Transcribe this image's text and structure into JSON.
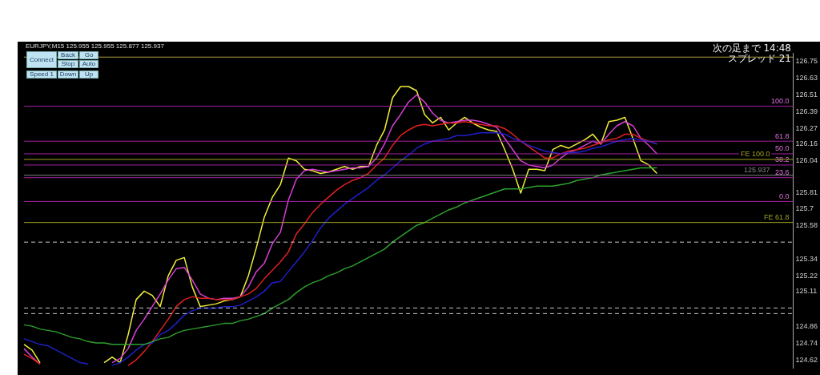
{
  "chart_data": {
    "type": "line",
    "title": "EURJPY,M15 125.955 125.955 125.877 125.937",
    "categories": [
      null,
      null,
      null,
      null,
      null,
      null,
      null,
      null,
      null,
      null,
      null,
      null,
      null,
      null,
      null,
      null,
      null,
      null,
      null,
      null,
      null,
      null,
      null,
      null,
      null,
      null,
      null,
      null,
      null,
      null,
      null,
      null,
      null,
      null,
      null,
      null,
      null,
      null,
      null,
      null,
      null,
      null,
      null,
      null,
      null,
      null,
      null,
      null,
      null,
      null,
      null,
      null,
      null,
      null,
      null,
      null,
      null,
      null,
      null,
      null,
      null,
      null,
      null,
      null,
      null,
      null,
      null,
      null,
      null,
      null,
      null,
      null,
      null,
      null,
      null,
      null,
      null,
      null,
      null,
      null,
      null,
      null,
      null,
      null,
      null,
      null,
      null,
      null,
      null,
      null,
      null,
      null,
      null,
      null,
      null,
      null,
      null
    ],
    "series": [
      {
        "color": "#2ca02c",
        "values": [
          124.87,
          124.86,
          124.84,
          124.83,
          124.82,
          124.8,
          124.78,
          124.77,
          124.75,
          124.74,
          124.74,
          124.73,
          124.73,
          124.73,
          124.73,
          124.73,
          124.75,
          124.77,
          124.78,
          124.81,
          124.83,
          124.84,
          124.85,
          124.86,
          124.87,
          124.88,
          124.88,
          124.9,
          124.91,
          124.93,
          124.95,
          124.99,
          125.02,
          125.05,
          125.1,
          125.14,
          125.17,
          125.19,
          125.22,
          125.24,
          125.27,
          125.29,
          125.32,
          125.35,
          125.38,
          125.41,
          125.46,
          125.5,
          125.54,
          125.58,
          125.6,
          125.63,
          125.66,
          125.69,
          125.71,
          125.74,
          125.76,
          125.78,
          125.8,
          125.82,
          125.84,
          125.84,
          125.84,
          125.85,
          125.86,
          125.86,
          125.86,
          125.87,
          125.88,
          125.9,
          125.91,
          125.92,
          125.94,
          125.95,
          125.96,
          125.97,
          125.98,
          125.99,
          125.99,
          125.99,
          null,
          null,
          null,
          null,
          null,
          null,
          null,
          null,
          null,
          null,
          null,
          null,
          null,
          null,
          null,
          null,
          null
        ]
      },
      {
        "color": "#1f1fc8",
        "values": [
          124.77,
          124.75,
          124.73,
          124.72,
          124.69,
          124.66,
          124.63,
          124.6,
          124.59,
          null,
          null,
          124.58,
          124.6,
          124.64,
          124.69,
          124.73,
          124.74,
          124.8,
          124.83,
          124.88,
          124.94,
          124.97,
          124.99,
          124.99,
          124.99,
          125.0,
          125.0,
          125.01,
          125.04,
          125.07,
          125.11,
          125.17,
          125.18,
          125.25,
          125.32,
          125.39,
          125.47,
          125.56,
          125.63,
          125.68,
          125.73,
          125.77,
          125.81,
          125.85,
          125.9,
          125.94,
          125.99,
          126.04,
          126.08,
          126.13,
          126.16,
          126.18,
          126.19,
          126.2,
          126.22,
          126.22,
          126.23,
          126.24,
          126.24,
          126.24,
          126.23,
          126.2,
          126.18,
          126.15,
          126.13,
          126.11,
          126.1,
          126.09,
          126.1,
          126.1,
          126.11,
          126.13,
          126.14,
          126.16,
          126.18,
          126.19,
          126.2,
          126.19,
          126.18,
          126.16,
          null,
          null,
          null,
          null,
          null,
          null,
          null,
          null,
          null,
          null,
          null,
          null,
          null,
          null,
          null,
          null,
          null
        ]
      },
      {
        "color": "#e02020",
        "values": [
          124.66,
          124.63,
          124.59,
          null,
          null,
          null,
          null,
          null,
          null,
          null,
          null,
          null,
          null,
          124.58,
          124.62,
          124.68,
          124.75,
          124.83,
          124.91,
          125.0,
          125.05,
          125.07,
          125.06,
          125.06,
          125.05,
          125.05,
          125.05,
          125.07,
          125.09,
          125.13,
          125.2,
          125.26,
          125.32,
          125.39,
          125.52,
          125.59,
          125.67,
          125.73,
          125.78,
          125.83,
          125.87,
          125.9,
          125.92,
          125.95,
          126.01,
          126.06,
          126.15,
          126.22,
          126.26,
          126.29,
          126.3,
          126.29,
          126.3,
          126.31,
          126.31,
          126.32,
          126.31,
          126.3,
          126.29,
          126.29,
          126.27,
          126.23,
          126.18,
          126.14,
          126.1,
          126.06,
          126.06,
          126.09,
          126.11,
          126.12,
          126.13,
          126.15,
          126.17,
          126.19,
          126.2,
          126.23,
          126.23,
          126.2,
          126.18,
          126.16,
          null,
          null,
          null,
          null,
          null,
          null,
          null,
          null,
          null,
          null,
          null,
          null,
          null,
          null,
          null,
          null,
          null
        ]
      },
      {
        "color": "#d63fd6",
        "values": [
          124.7,
          124.64,
          124.59,
          null,
          null,
          null,
          null,
          null,
          null,
          null,
          null,
          124.6,
          124.63,
          124.7,
          124.83,
          124.91,
          125.0,
          125.09,
          125.19,
          125.27,
          125.28,
          125.19,
          125.09,
          125.06,
          125.05,
          125.06,
          125.06,
          125.07,
          125.14,
          125.25,
          125.31,
          125.45,
          125.53,
          125.76,
          125.91,
          125.97,
          125.98,
          125.97,
          125.96,
          125.97,
          125.98,
          125.99,
          125.99,
          126.0,
          126.06,
          126.16,
          126.29,
          126.37,
          126.46,
          126.51,
          126.46,
          126.38,
          126.33,
          126.31,
          126.32,
          126.33,
          126.33,
          126.32,
          126.3,
          126.28,
          126.2,
          126.12,
          126.04,
          126.01,
          126.0,
          125.99,
          126.01,
          126.06,
          126.1,
          126.12,
          126.15,
          126.18,
          126.16,
          126.23,
          126.29,
          126.32,
          126.29,
          126.2,
          126.15,
          126.09,
          null,
          null,
          null,
          null,
          null,
          null,
          null,
          null,
          null,
          null,
          null,
          null,
          null,
          null,
          null,
          null,
          null
        ]
      },
      {
        "color": "#f2ee3a",
        "values": [
          124.73,
          124.69,
          124.6,
          null,
          null,
          null,
          null,
          null,
          null,
          null,
          124.6,
          124.64,
          124.6,
          124.8,
          125.05,
          125.11,
          125.08,
          125.0,
          125.22,
          125.33,
          125.35,
          125.14,
          125.0,
          125.01,
          125.02,
          125.04,
          125.05,
          125.07,
          125.22,
          125.42,
          125.64,
          125.78,
          125.87,
          126.06,
          126.04,
          125.98,
          125.97,
          125.95,
          125.96,
          125.98,
          126.0,
          125.98,
          126.0,
          126.0,
          126.15,
          126.26,
          126.49,
          126.57,
          126.57,
          126.54,
          126.37,
          126.31,
          126.35,
          126.26,
          126.31,
          126.35,
          126.31,
          126.28,
          126.26,
          126.25,
          126.12,
          125.98,
          125.81,
          125.98,
          125.98,
          125.97,
          126.12,
          126.15,
          126.13,
          126.16,
          126.19,
          126.23,
          126.16,
          126.32,
          126.33,
          126.35,
          126.2,
          126.04,
          126.01,
          125.95,
          null,
          null,
          null,
          null,
          null,
          null,
          null,
          null,
          null,
          null,
          null,
          null,
          null,
          null,
          null,
          null,
          null
        ]
      }
    ],
    "ylim": [
      124.56,
      126.81
    ],
    "yticks": [
      124.62,
      124.74,
      124.86,
      125.11,
      125.22,
      125.34,
      125.58,
      125.7,
      125.81,
      126.04,
      126.16,
      126.27,
      126.39,
      126.51,
      126.63,
      126.75
    ],
    "ref_lines": [
      {
        "axis": "y",
        "value": 126.78,
        "color": "#b0a040"
      },
      {
        "axis": "y",
        "value": 126.43,
        "color": "#a020a0"
      },
      {
        "axis": "y",
        "value": 126.18,
        "color": "#a020a0"
      },
      {
        "axis": "y",
        "value": 126.09,
        "color": "#a020a0"
      },
      {
        "axis": "y",
        "value": 126.05,
        "label": "FE 100.0",
        "color": "#a0a020"
      },
      {
        "axis": "y",
        "value": 126.01,
        "color": "#a020a0"
      },
      {
        "axis": "y",
        "value": 125.937,
        "label": "125.937",
        "color": "#808080"
      },
      {
        "axis": "y",
        "value": 125.92,
        "color": "#a020a0"
      },
      {
        "axis": "y",
        "value": 125.75,
        "color": "#a020a0"
      },
      {
        "axis": "y",
        "value": 125.6,
        "label": "FE 61.8",
        "color": "#a0a020"
      },
      {
        "axis": "y",
        "value": 125.46,
        "color": "#c8c8c8",
        "line_style": "dashed"
      },
      {
        "axis": "y",
        "value": 124.99,
        "color": "#c8c8c8",
        "line_style": "dashed"
      },
      {
        "axis": "y",
        "value": 124.95,
        "color": "#c8c8c8",
        "line_style": "dashed"
      }
    ],
    "annotations": [
      "Connect",
      "Back",
      "Go",
      "Stop",
      "Auto",
      "Speed 1",
      "Down",
      "Up",
      "次の足まで 14:48",
      "スプレッド 21",
      {
        "text": "100.0",
        "y": 126.43
      },
      {
        "text": "61.8",
        "y": 126.18
      },
      {
        "text": "50.0",
        "y": 126.09
      },
      {
        "text": "38.2",
        "y": 126.01
      },
      {
        "text": "23.6",
        "y": 125.92
      },
      {
        "text": "0.0",
        "y": 125.75
      }
    ],
    "marker": "none",
    "line_style": "solid",
    "legend": false,
    "tick_labels": "y"
  }
}
